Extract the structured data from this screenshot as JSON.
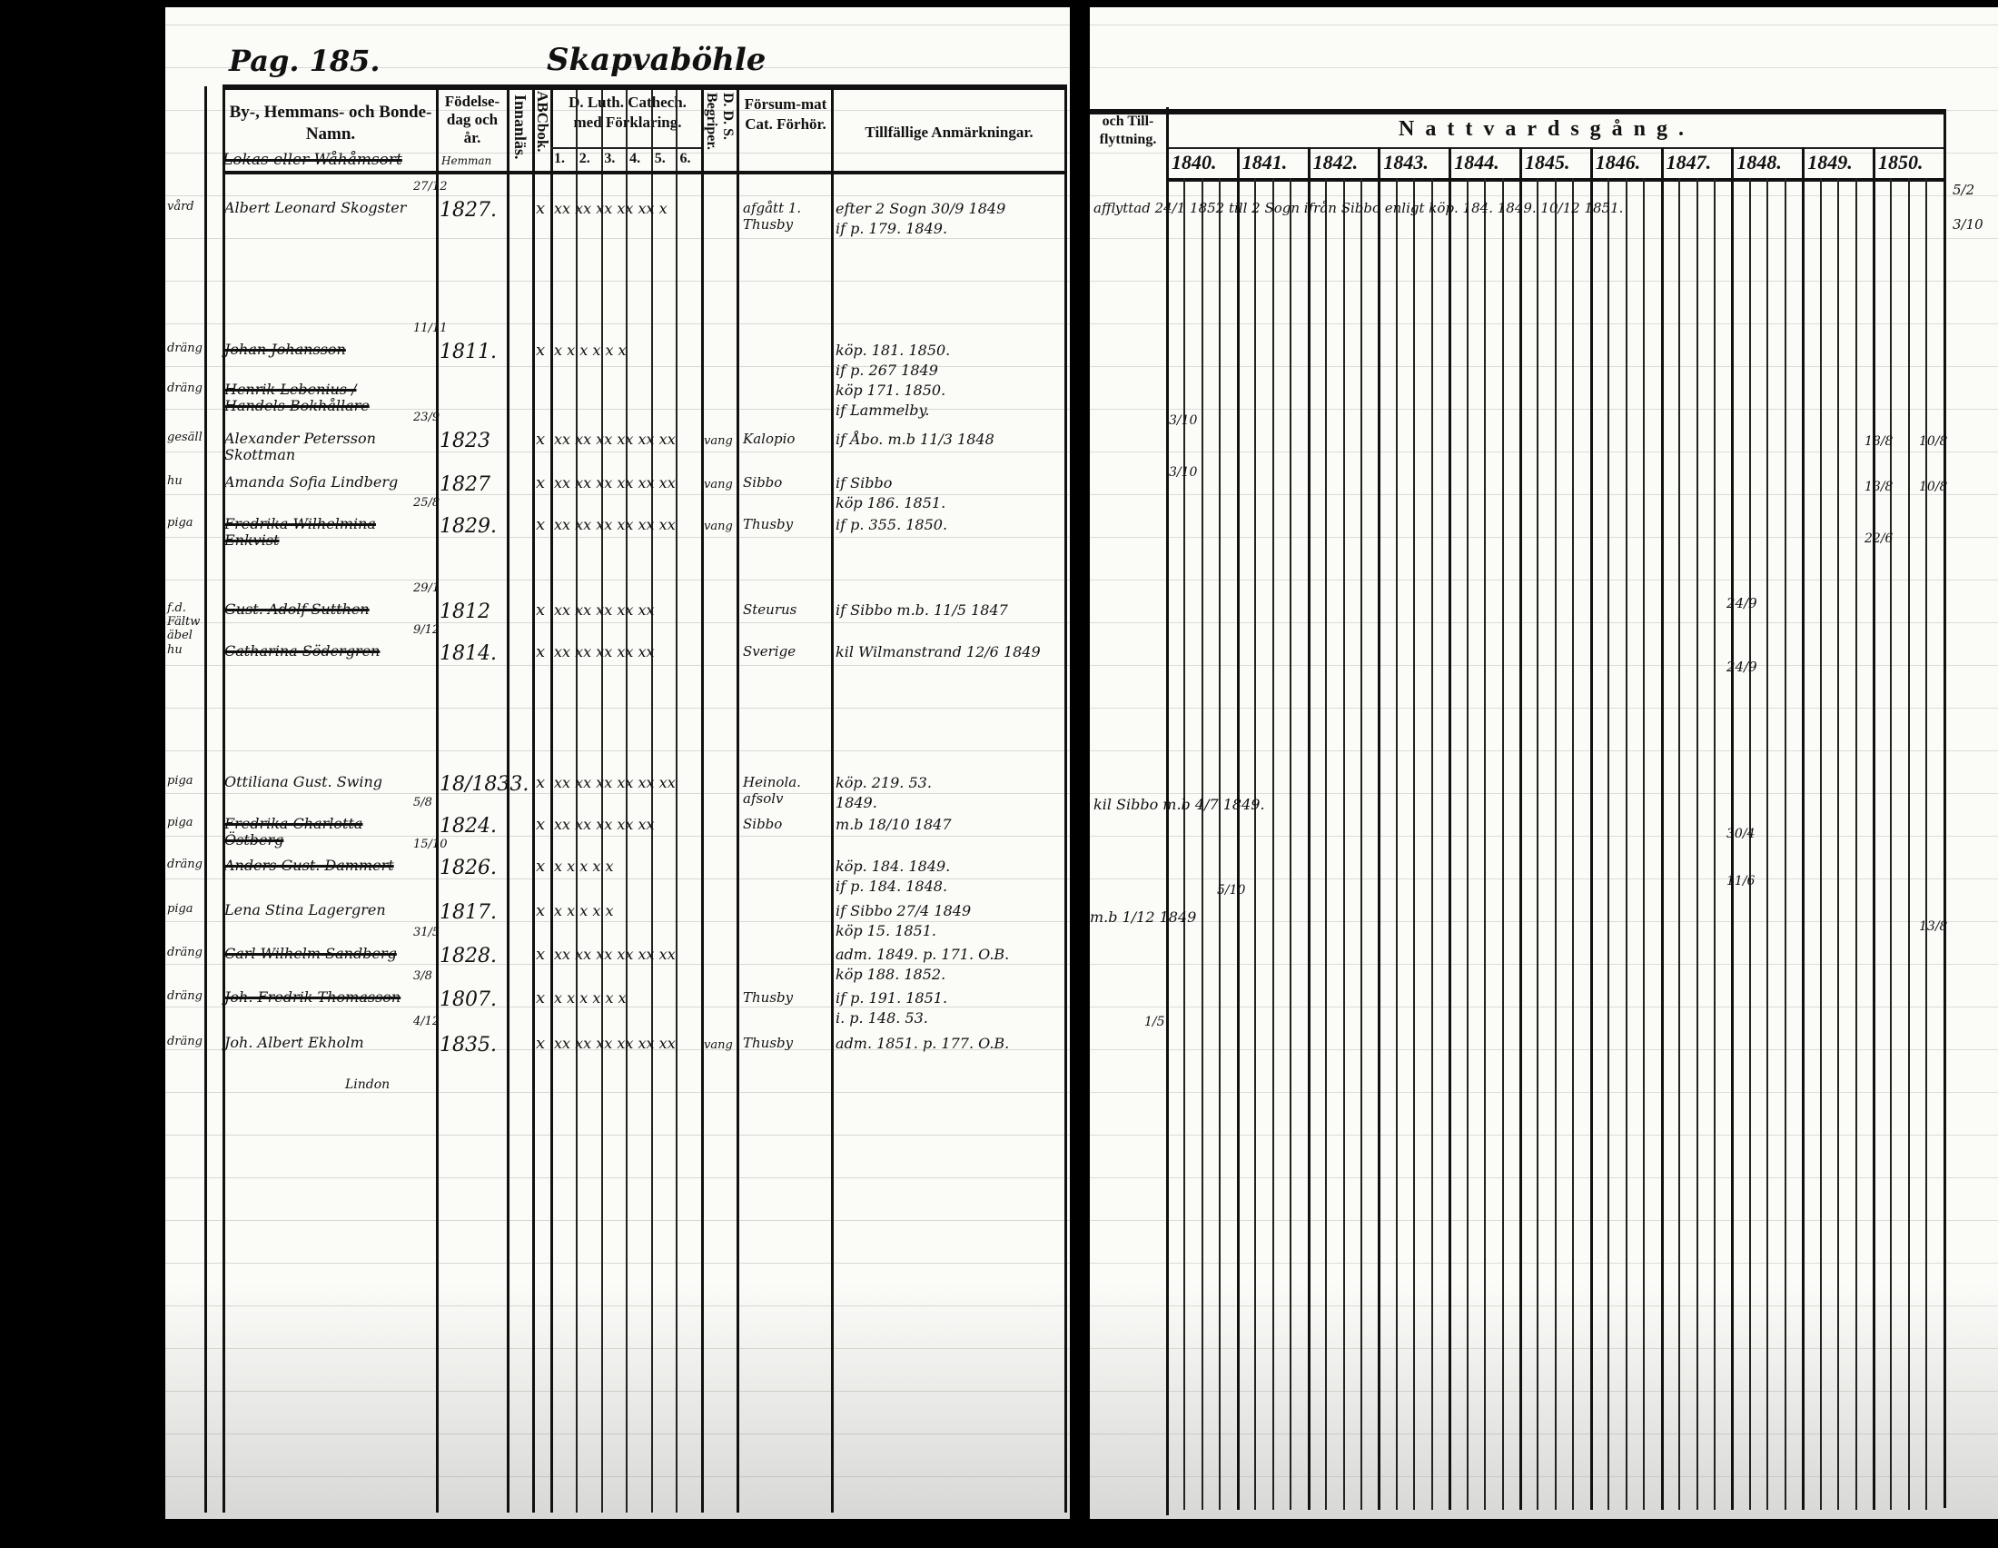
{
  "left_page": {
    "page_number": "Pag. 185.",
    "village_title": "Skapvaböhle",
    "headers": {
      "name_col": "By-, Hemmans- och Bonde-Namn.",
      "name_subtitle": "Lokas eller Wåhåmsort",
      "birth_col": "Födelse-dag och år.",
      "birth_subtitle": "Hemman",
      "innanlas": "Innanläs.",
      "abcbok": "ABCbok.",
      "catech": "D. Luth. Cathech. med Förklaring.",
      "catech_parts": [
        "1.",
        "2.",
        "3.",
        "4.",
        "5.",
        "6."
      ],
      "dds": "D. D. S. Begriper.",
      "forsummat": "Försum-mat Cat. Förhör.",
      "remarks": "Tillfällige Anmärkningar."
    },
    "rows": [
      {
        "role": "vård",
        "name": "Albert Leonard Skogster",
        "struck": false,
        "bdate": "27/12",
        "byear": "1827.",
        "abc": "x",
        "cat": "xx xx xx xx xx x",
        "dds": "",
        "forsum": "afgått 1. Thusby",
        "remarks": [
          "efter 2 Sogn 30/9 1849",
          "if p. 179. 1849."
        ]
      },
      {
        "role": "dräng",
        "name": "Johan Johansson",
        "struck": true,
        "bdate": "11/11",
        "byear": "1811.",
        "abc": "x",
        "cat": "x x x x x x",
        "dds": "",
        "forsum": "",
        "remarks": [
          "köp. 181. 1850.",
          "if p. 267 1849",
          "köp 171. 1850.",
          "if Lammelby."
        ]
      },
      {
        "role": "dräng",
        "name": "Henrik Lebenius / Handels Bokhållare",
        "struck": true,
        "bdate": "",
        "byear": "",
        "abc": "",
        "cat": "",
        "dds": "",
        "forsum": "",
        "remarks": []
      },
      {
        "role": "gesäll",
        "name": "Alexander Petersson Skottman",
        "struck": false,
        "bdate": "23/9",
        "byear": "1823",
        "abc": "x",
        "cat": "xx xx xx xx xx xx",
        "dds": "vang",
        "forsum": "Kalopio",
        "remarks": [
          "if Åbo. m.b 11/3 1848"
        ]
      },
      {
        "role": "hu",
        "name": "Amanda Sofia Lindberg",
        "struck": false,
        "bdate": "",
        "byear": "1827",
        "abc": "x",
        "cat": "xx xx xx xx xx xx",
        "dds": "vang",
        "forsum": "Sibbo",
        "remarks": [
          "if Sibbo",
          "köp 186. 1851."
        ]
      },
      {
        "role": "piga",
        "name": "Fredrika Wilhelmina Enkvist",
        "struck": true,
        "bdate": "25/8",
        "byear": "1829.",
        "abc": "x",
        "cat": "xx xx xx xx xx xx",
        "dds": "vang",
        "forsum": "Thusby",
        "remarks": [
          "if p. 355. 1850."
        ]
      },
      {
        "role": "f.d. Fältwäbel",
        "name": "Gust. Adolf Sutthen",
        "struck": true,
        "bdate": "29/1",
        "byear": "1812",
        "abc": "x",
        "cat": "xx xx xx xx xx",
        "dds": "",
        "forsum": "Steurus",
        "remarks": [
          "if Sibbo m.b. 11/5 1847"
        ]
      },
      {
        "role": "hu",
        "name": "Catharina Södergren",
        "struck": true,
        "bdate": "9/12",
        "byear": "1814.",
        "abc": "x",
        "cat": "xx xx xx xx xx",
        "dds": "",
        "forsum": "Sverige",
        "remarks": [
          "kil Wilmanstrand 12/6 1849"
        ]
      },
      {
        "role": "piga",
        "name": "Ottiliana Gust. Swing",
        "struck": false,
        "bdate": "",
        "byear": "18/1833.",
        "abc": "x",
        "cat": "xx xx xx xx xx xx",
        "dds": "",
        "forsum": "Heinola. afsolv",
        "remarks": [
          "köp. 219. 53.",
          "1849."
        ]
      },
      {
        "role": "piga",
        "name": "Fredrika Charlotta Östberg",
        "struck": true,
        "bdate": "5/8",
        "byear": "1824.",
        "abc": "x",
        "cat": "xx xx xx xx xx",
        "dds": "",
        "forsum": "Sibbo",
        "remarks": [
          "m.b 18/10 1847"
        ]
      },
      {
        "role": "dräng",
        "name": "Anders Gust. Dammert",
        "struck": true,
        "bdate": "15/10",
        "byear": "1826.",
        "abc": "x",
        "cat": "x x x x x",
        "dds": "",
        "forsum": "",
        "remarks": [
          "köp. 184. 1849.",
          "if p. 184. 1848."
        ]
      },
      {
        "role": "piga",
        "name": "Lena Stina Lagergren",
        "struck": false,
        "bdate": "",
        "byear": "1817.",
        "abc": "x",
        "cat": "x x x x x",
        "dds": "",
        "forsum": "",
        "remarks": [
          "if Sibbo 27/4 1849",
          "köp 15. 1851."
        ]
      },
      {
        "role": "dräng",
        "name": "Carl Wilhelm Sandberg",
        "struck": true,
        "bdate": "31/5",
        "byear": "1828.",
        "abc": "x",
        "cat": "xx xx xx xx xx xx",
        "dds": "",
        "forsum": "",
        "remarks": [
          "adm. 1849. p. 171. O.B.",
          "köp 188. 1852."
        ]
      },
      {
        "role": "dräng",
        "name": "Joh. Fredrik Thomasson",
        "struck": true,
        "bdate": "3/8",
        "byear": "1807.",
        "abc": "x",
        "cat": "x x x x x x",
        "dds": "",
        "forsum": "Thusby",
        "remarks": [
          "if p. 191. 1851.",
          "i. p. 148. 53."
        ]
      },
      {
        "role": "dräng",
        "name": "Joh. Albert Ekholm",
        "struck": false,
        "bdate": "4/12",
        "byear": "1835.",
        "abc": "x",
        "cat": "xx xx xx xx xx xx",
        "dds": "vang",
        "forsum": "Thusby",
        "remarks": [
          "adm. 1851. p. 177. O.B."
        ]
      }
    ],
    "footer_note": "Lindon"
  },
  "right_page": {
    "headers": {
      "moving_col": "och Till-flyttning.",
      "communion": "Nattvardsgång.",
      "years": [
        "1840.",
        "1841.",
        "1842.",
        "1843.",
        "1844.",
        "1845.",
        "1846.",
        "1847.",
        "1848.",
        "1849.",
        "1850."
      ]
    },
    "notes": [
      "afflyttad 24/1 1852 till 2 Sogn ifrån Sibbo enligt köp. 184. 1849. 10/12 1851.",
      "3/10",
      "3/10",
      "18/8",
      "13/8",
      "22/6",
      "10/8",
      "10/8",
      "24/9",
      "24/9",
      "kil Sibbo m.b 4/7 1849.",
      "30/4",
      "11/6",
      "m.b 1/12 1849",
      "5/10",
      "1/5",
      "5/2",
      "3/10",
      "13/8"
    ]
  }
}
